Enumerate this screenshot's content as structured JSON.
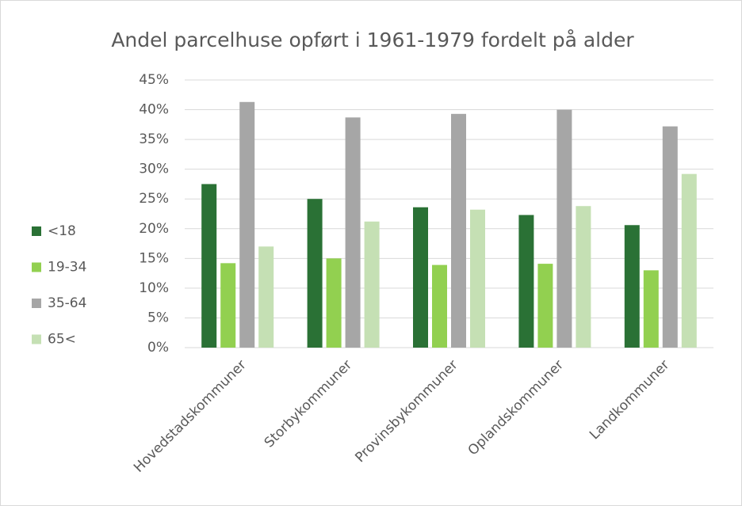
{
  "chart_data": {
    "type": "bar",
    "title": "Andel parcelhuse opført i 1961-1979 fordelt på alder",
    "categories": [
      "Hovedstadskommuner",
      "Storbykommuner",
      "Provinsbykommuner",
      "Oplandskommuner",
      "Landkommuner"
    ],
    "series": [
      {
        "name": "<18",
        "color": "#2a7135",
        "values": [
          27.5,
          25.0,
          23.6,
          22.3,
          20.6
        ]
      },
      {
        "name": "19-34",
        "color": "#92d050",
        "values": [
          14.2,
          15.0,
          13.9,
          14.1,
          13.0
        ]
      },
      {
        "name": "35-64",
        "color": "#a6a6a6",
        "values": [
          41.3,
          38.7,
          39.3,
          40.0,
          37.2
        ]
      },
      {
        "name": "65<",
        "color": "#c5e0b4",
        "values": [
          17.0,
          21.2,
          23.2,
          23.8,
          29.2
        ]
      }
    ],
    "ylim": [
      0,
      45
    ],
    "yticks": [
      {
        "value": 0,
        "label": "0%"
      },
      {
        "value": 5,
        "label": "5%"
      },
      {
        "value": 10,
        "label": "10%"
      },
      {
        "value": 15,
        "label": "15%"
      },
      {
        "value": 20,
        "label": "20%"
      },
      {
        "value": 25,
        "label": "25%"
      },
      {
        "value": 30,
        "label": "30%"
      },
      {
        "value": 35,
        "label": "35%"
      },
      {
        "value": 40,
        "label": "40%"
      },
      {
        "value": 45,
        "label": "45%"
      }
    ],
    "grid": true,
    "legend": "left"
  }
}
